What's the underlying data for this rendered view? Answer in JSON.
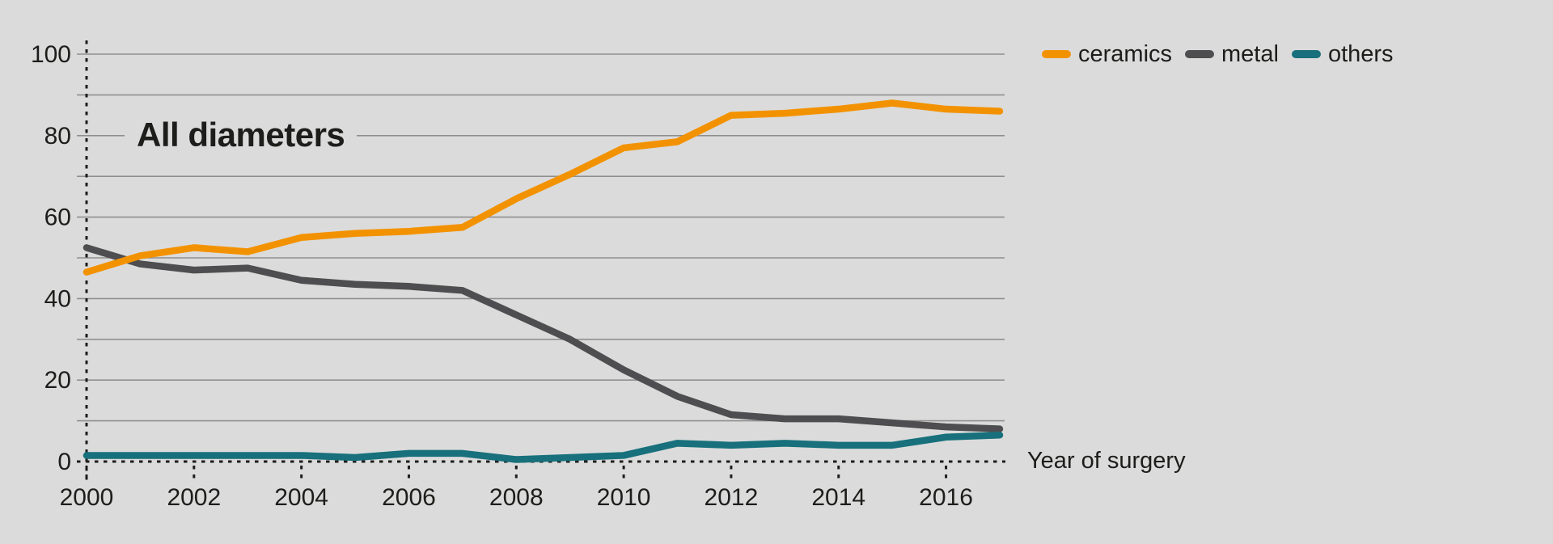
{
  "chart_data": {
    "type": "line",
    "title": "All diameters",
    "xlabel": "Year of surgery",
    "ylabel": "",
    "x": [
      2000,
      2001,
      2002,
      2003,
      2004,
      2005,
      2006,
      2007,
      2008,
      2009,
      2010,
      2011,
      2012,
      2013,
      2014,
      2015,
      2016,
      2017
    ],
    "series": [
      {
        "name": "ceramics",
        "color": "#F39200",
        "values": [
          46.5,
          50.5,
          52.5,
          51.5,
          55,
          56,
          56.5,
          57.5,
          64.5,
          70.5,
          77,
          78.5,
          85,
          85.5,
          86.5,
          88,
          86.5,
          86
        ]
      },
      {
        "name": "metal",
        "color": "#4E4E50",
        "values": [
          52.5,
          48.5,
          47,
          47.5,
          44.5,
          43.5,
          43,
          42,
          36,
          30,
          22.5,
          16,
          11.5,
          10.5,
          10.5,
          9.5,
          8.5,
          8
        ]
      },
      {
        "name": "others",
        "color": "#17707B",
        "values": [
          1.5,
          1.5,
          1.5,
          1.5,
          1.5,
          1,
          2,
          2,
          0.5,
          1,
          1.5,
          4.5,
          4,
          4.5,
          4,
          4,
          6,
          6.5
        ]
      }
    ],
    "ylim": [
      0,
      100
    ],
    "yticks": [
      0,
      20,
      40,
      60,
      80,
      100
    ],
    "gridline_step": 10,
    "xticks": [
      2000,
      2002,
      2004,
      2006,
      2008,
      2010,
      2012,
      2014,
      2016
    ],
    "grid": "on",
    "legend_position": "top-right"
  },
  "legend": {
    "items": [
      {
        "label": "ceramics"
      },
      {
        "label": "metal"
      },
      {
        "label": "others"
      }
    ]
  },
  "colors": {
    "background": "#DBDBDB",
    "gridline": "#8F8F8F",
    "axis": "#1D1D1B",
    "text": "#1D1D1B"
  }
}
